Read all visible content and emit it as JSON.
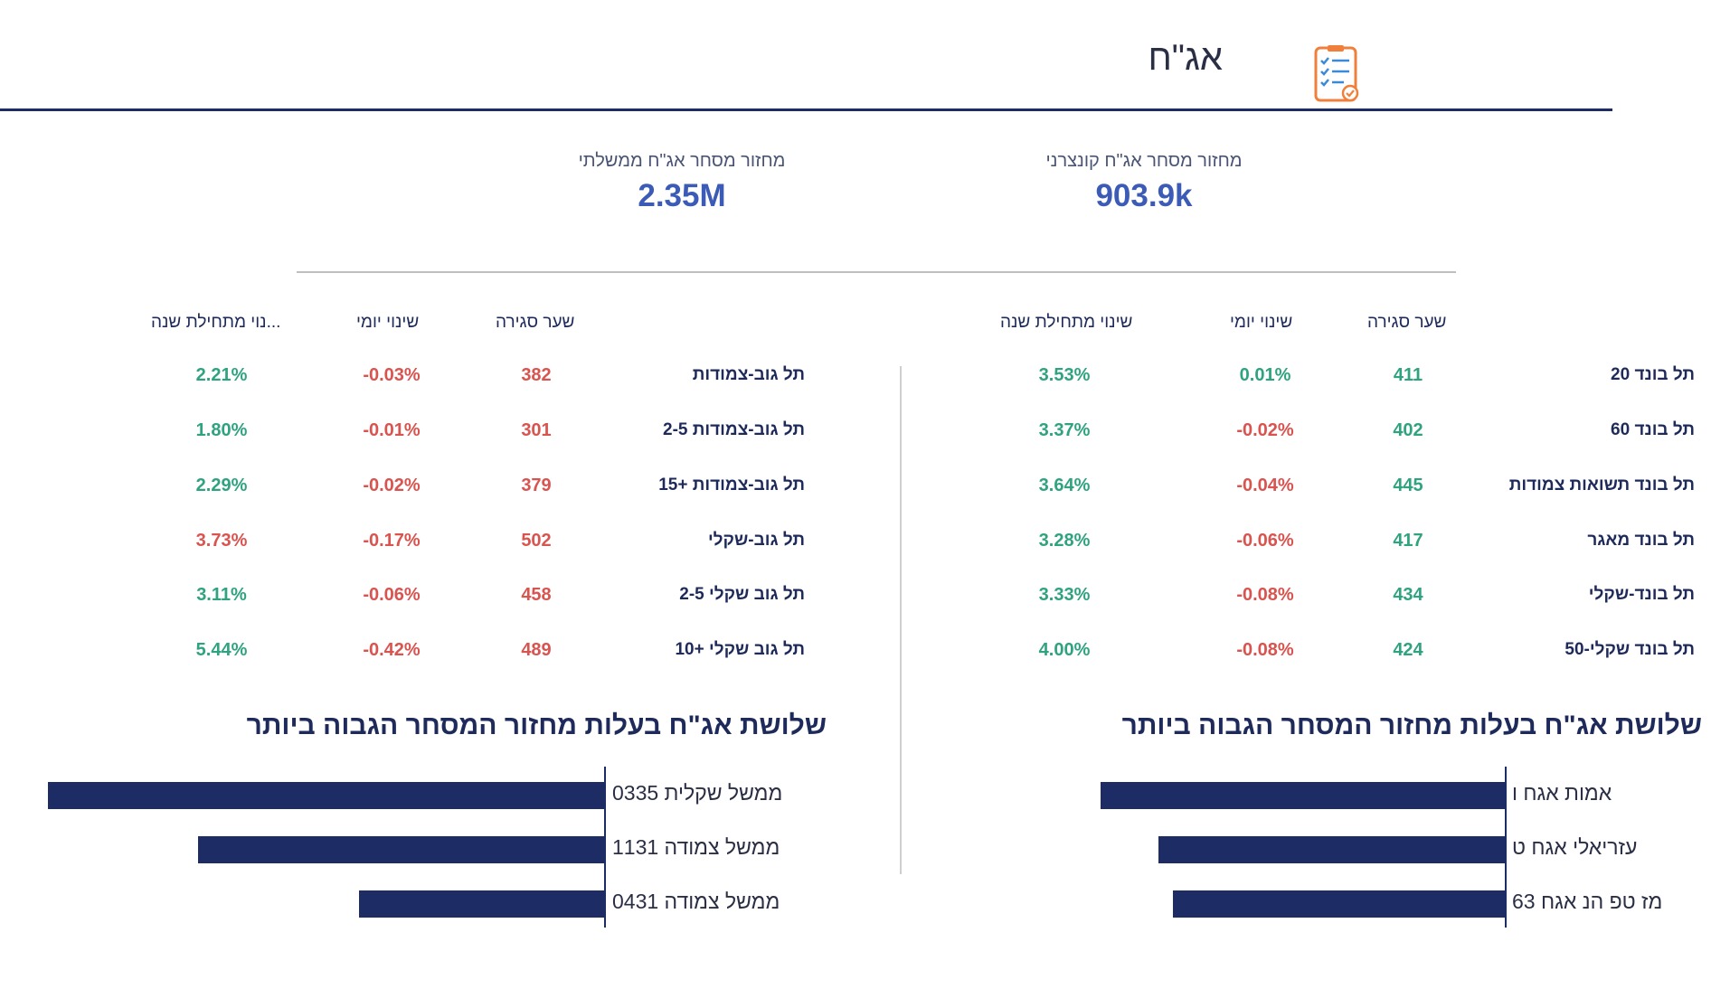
{
  "header": {
    "title": "אג\"ח",
    "icon": "checklist-document-icon"
  },
  "kpis": {
    "corporate": {
      "label": "מחזור מסחר אג\"ח קונצרני",
      "value": "903.9k"
    },
    "government": {
      "label": "מחזור מסחר אג\"ח ממשלתי",
      "value": "2.35M"
    }
  },
  "corp_table": {
    "headers": {
      "close": "שער סגירה",
      "daily": "שינוי יומי",
      "ytd": "שינוי מתחילת שנה"
    },
    "rows": [
      {
        "name": "תל בונד 20",
        "close": "411",
        "daily": "0.01%",
        "ytd": "3.53%"
      },
      {
        "name": "תל בונד 60",
        "close": "402",
        "daily": "-0.02%",
        "ytd": "3.37%"
      },
      {
        "name": "תל בונד תשואות צמודות",
        "close": "445",
        "daily": "-0.04%",
        "ytd": "3.64%"
      },
      {
        "name": "תל בונד מאגר",
        "close": "417",
        "daily": "-0.06%",
        "ytd": "3.28%"
      },
      {
        "name": "תל בונד-שקלי",
        "close": "434",
        "daily": "-0.08%",
        "ytd": "3.33%"
      },
      {
        "name": "תל בונד שקלי-50",
        "close": "424",
        "daily": "-0.08%",
        "ytd": "4.00%"
      }
    ]
  },
  "gov_table": {
    "headers": {
      "close": "שער סגירה",
      "daily": "שינוי יומי",
      "ytd": "...נוי מתחילת שנה"
    },
    "rows": [
      {
        "name": "תל גוב-צמודות",
        "close": "382",
        "daily": "-0.03%",
        "ytd": "2.21%"
      },
      {
        "name": "תל גוב-צמודות 2-5",
        "close": "301",
        "daily": "-0.01%",
        "ytd": "1.80%"
      },
      {
        "name": "תל גוב-צמודות +15",
        "close": "379",
        "daily": "-0.02%",
        "ytd": "2.29%"
      },
      {
        "name": "תל גוב-שקלי",
        "close": "502",
        "daily": "-0.17%",
        "ytd": "3.73%"
      },
      {
        "name": "תל גוב שקלי 2-5",
        "close": "458",
        "daily": "-0.06%",
        "ytd": "3.11%"
      },
      {
        "name": "תל גוב שקלי +10",
        "close": "489",
        "daily": "-0.42%",
        "ytd": "5.44%"
      }
    ]
  },
  "colors": {
    "positive": "#2fa27f",
    "negative": "#d9534f",
    "bar": "#1d2c64",
    "kpi": "#3b5bb6"
  },
  "chart_data": [
    {
      "type": "bar",
      "title": "שלושת אג\"ח בעלות מחזור המסחר הגבוה ביותר",
      "categories": [
        "אמות    אגח ו",
        "עזריאלי   אגח ט",
        "מז טפ הנ אגח 63"
      ],
      "values": [
        0.84,
        0.72,
        0.69
      ]
    },
    {
      "type": "bar",
      "title": "שלושת אג\"ח בעלות מחזור המסחר הגבוה ביותר",
      "categories": [
        "ממשל שקלית 0335",
        "ממשל צמודה 1131",
        "ממשל צמודה 0431"
      ],
      "values": [
        1.0,
        0.73,
        0.44
      ]
    }
  ]
}
